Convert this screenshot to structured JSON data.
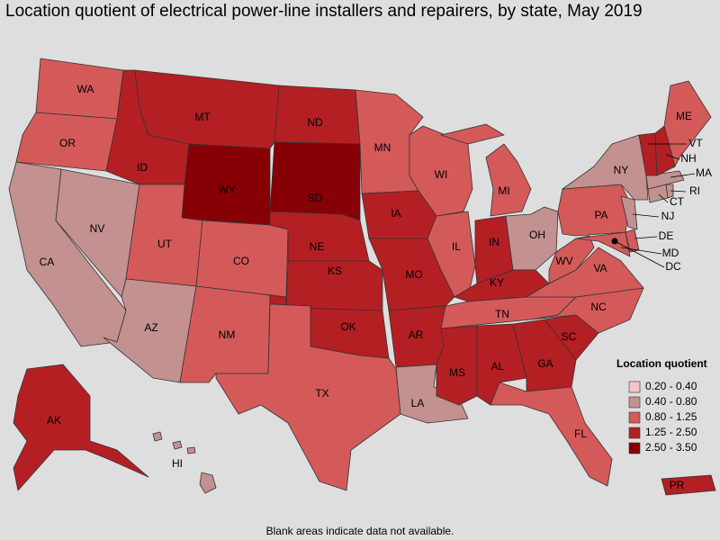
{
  "header": {
    "title": "Location quotient of electrical power-line installers and repairers, by state, May 2019"
  },
  "legend": {
    "title": "Location quotient",
    "items": [
      {
        "label": "0.20 - 0.40",
        "color": "#f8c3c9"
      },
      {
        "label": "0.40 - 0.80",
        "color": "#c3918f"
      },
      {
        "label": "0.80 - 1.25",
        "color": "#d45a5a"
      },
      {
        "label": "1.25 - 2.50",
        "color": "#b41f24"
      },
      {
        "label": "2.50 - 3.50",
        "color": "#860006"
      }
    ]
  },
  "states": [
    {
      "label": "WA",
      "range": "0.80 - 1.25"
    },
    {
      "label": "OR",
      "range": "0.80 - 1.25"
    },
    {
      "label": "CA",
      "range": "0.40 - 0.80"
    },
    {
      "label": "NV",
      "range": "0.40 - 0.80"
    },
    {
      "label": "ID",
      "range": "1.25 - 2.50"
    },
    {
      "label": "MT",
      "range": "1.25 - 2.50"
    },
    {
      "label": "WY",
      "range": "2.50 - 3.50"
    },
    {
      "label": "UT",
      "range": "0.80 - 1.25"
    },
    {
      "label": "CO",
      "range": "0.80 - 1.25"
    },
    {
      "label": "AZ",
      "range": "0.40 - 0.80"
    },
    {
      "label": "NM",
      "range": "0.80 - 1.25"
    },
    {
      "label": "ND",
      "range": "1.25 - 2.50"
    },
    {
      "label": "SD",
      "range": "2.50 - 3.50"
    },
    {
      "label": "NE",
      "range": "1.25 - 2.50"
    },
    {
      "label": "KS",
      "range": "1.25 - 2.50"
    },
    {
      "label": "OK",
      "range": "1.25 - 2.50"
    },
    {
      "label": "TX",
      "range": "0.80 - 1.25"
    },
    {
      "label": "MN",
      "range": "0.80 - 1.25"
    },
    {
      "label": "IA",
      "range": "1.25 - 2.50"
    },
    {
      "label": "MO",
      "range": "1.25 - 2.50"
    },
    {
      "label": "AR",
      "range": "1.25 - 2.50"
    },
    {
      "label": "LA",
      "range": "0.40 - 0.80"
    },
    {
      "label": "WI",
      "range": "0.80 - 1.25"
    },
    {
      "label": "IL",
      "range": "0.80 - 1.25"
    },
    {
      "label": "MI",
      "range": "0.80 - 1.25"
    },
    {
      "label": "IN",
      "range": "1.25 - 2.50"
    },
    {
      "label": "OH",
      "range": "0.40 - 0.80"
    },
    {
      "label": "KY",
      "range": "1.25 - 2.50"
    },
    {
      "label": "TN",
      "range": "0.80 - 1.25"
    },
    {
      "label": "MS",
      "range": "1.25 - 2.50"
    },
    {
      "label": "AL",
      "range": "1.25 - 2.50"
    },
    {
      "label": "GA",
      "range": "1.25 - 2.50"
    },
    {
      "label": "FL",
      "range": "0.80 - 1.25"
    },
    {
      "label": "SC",
      "range": "1.25 - 2.50"
    },
    {
      "label": "NC",
      "range": "0.80 - 1.25"
    },
    {
      "label": "VA",
      "range": "0.80 - 1.25"
    },
    {
      "label": "WV",
      "range": "0.80 - 1.25"
    },
    {
      "label": "MD",
      "range": "0.80 - 1.25"
    },
    {
      "label": "DE",
      "range": "0.80 - 1.25"
    },
    {
      "label": "PA",
      "range": "0.80 - 1.25"
    },
    {
      "label": "NJ",
      "range": "0.40 - 0.80"
    },
    {
      "label": "NY",
      "range": "0.40 - 0.80"
    },
    {
      "label": "CT",
      "range": "0.40 - 0.80"
    },
    {
      "label": "RI",
      "range": "0.40 - 0.80"
    },
    {
      "label": "MA",
      "range": "0.40 - 0.80"
    },
    {
      "label": "VT",
      "range": "1.25 - 2.50"
    },
    {
      "label": "NH",
      "range": "1.25 - 2.50"
    },
    {
      "label": "ME",
      "range": "0.80 - 1.25"
    },
    {
      "label": "AK",
      "range": "1.25 - 2.50"
    },
    {
      "label": "HI",
      "range": "0.40 - 0.80"
    },
    {
      "label": "PR",
      "range": "1.25 - 2.50"
    },
    {
      "label": "DC",
      "range": "2.50 - 3.50"
    }
  ],
  "footnote": "Blank areas indicate data not available."
}
